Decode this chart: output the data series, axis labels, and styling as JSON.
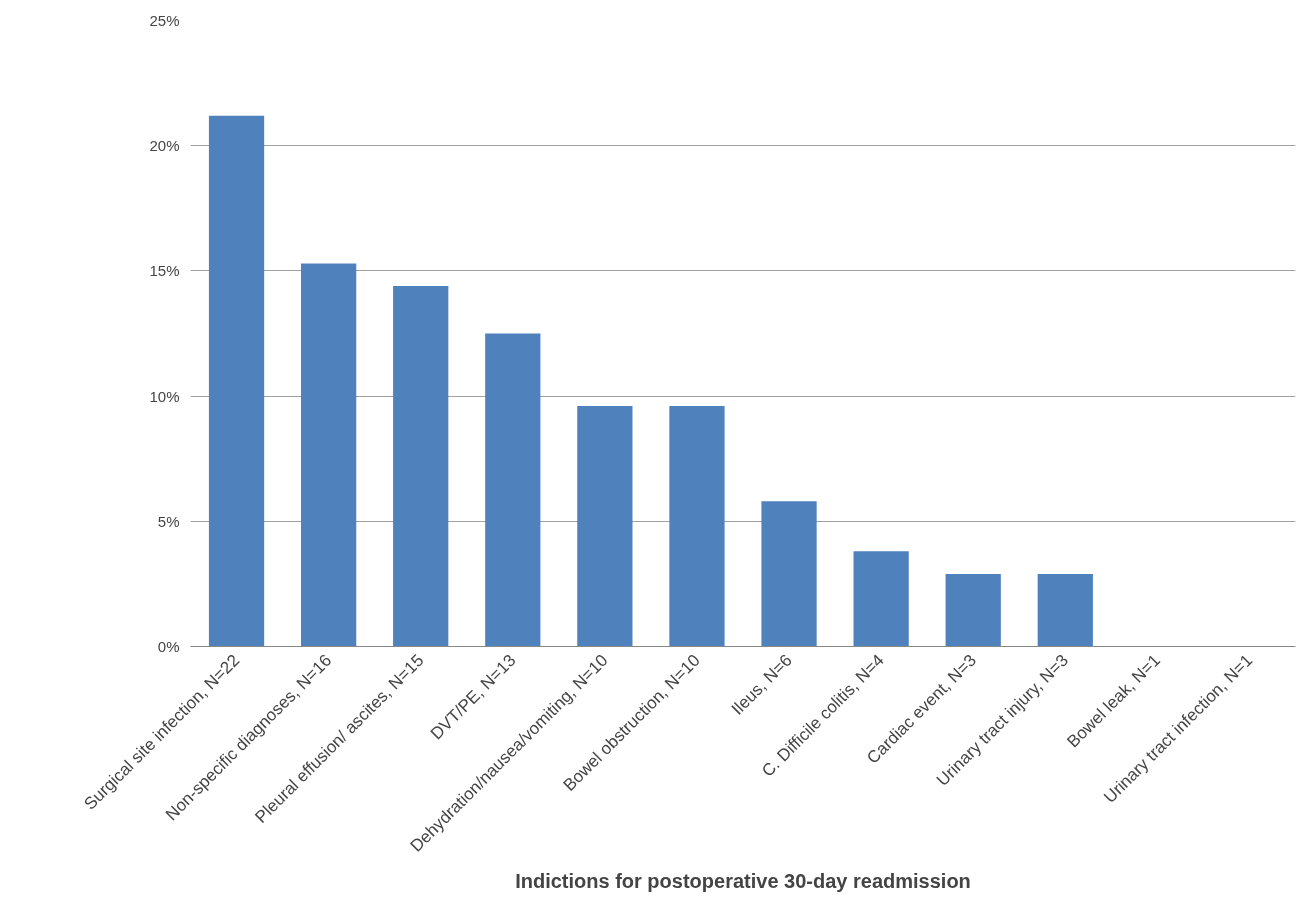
{
  "chart_data": {
    "type": "bar",
    "xlabel": "Indictions for postoperative 30-day readmission",
    "categories": [
      "Surgical site infection, N=22",
      "Non-specific diagnoses, N=16",
      "Pleural effusion/ ascites, N=15",
      "DVT/PE, N=13",
      "Dehydration/nausea/vomiting, N=10",
      "Bowel obstruction, N=10",
      "Ileus, N=6",
      "C. Difficile colitis, N=4",
      "Cardiac event, N=3",
      "Urinary tract injury, N=3",
      "Bowel leak, N=1",
      "Urinary tract infection, N=1"
    ],
    "values": [
      21.2,
      15.3,
      14.4,
      12.5,
      9.6,
      9.6,
      5.8,
      3.8,
      2.9,
      2.9,
      0,
      0
    ],
    "color": "#4f81bd",
    "ylim": [
      0,
      25
    ],
    "yticks": [
      {
        "value": 0,
        "label": "0%"
      },
      {
        "value": 5,
        "label": "5%"
      },
      {
        "value": 10,
        "label": "10%"
      },
      {
        "value": 15,
        "label": "15%"
      },
      {
        "value": 20,
        "label": "20%"
      },
      {
        "value": 25,
        "label": "25%"
      }
    ],
    "grid": "y"
  }
}
